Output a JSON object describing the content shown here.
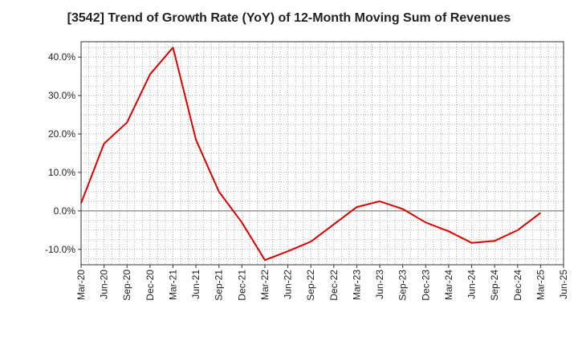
{
  "chart_data": {
    "type": "line",
    "title": "[3542]  Trend of Growth Rate (YoY) of 12-Month Moving Sum of Revenues",
    "xlabel": "",
    "ylabel": "",
    "ylim": [
      -14,
      44
    ],
    "y_ticks": [
      -10,
      0,
      10,
      20,
      30,
      40
    ],
    "y_tick_labels": [
      "-10.0%",
      "0.0%",
      "10.0%",
      "20.0%",
      "30.0%",
      "40.0%"
    ],
    "x_tick_labels": [
      "Mar-20",
      "Jun-20",
      "Sep-20",
      "Dec-20",
      "Mar-21",
      "Jun-21",
      "Sep-21",
      "Dec-21",
      "Mar-22",
      "Jun-22",
      "Sep-22",
      "Dec-22",
      "Mar-23",
      "Jun-23",
      "Sep-23",
      "Dec-23",
      "Mar-24",
      "Jun-24",
      "Sep-24",
      "Dec-24",
      "Mar-25",
      "Jun-25"
    ],
    "grid": true,
    "series": [
      {
        "color": "#dd0000",
        "x": [
          "Mar-20",
          "Jun-20",
          "Sep-20",
          "Dec-20",
          "Mar-21",
          "Jun-21",
          "Sep-21",
          "Dec-21",
          "Mar-22",
          "Jun-22",
          "Sep-22",
          "Dec-22",
          "Mar-23",
          "Jun-23",
          "Sep-23",
          "Dec-23",
          "Mar-24",
          "Jun-24",
          "Sep-24",
          "Dec-24",
          "Mar-25"
        ],
        "values": [
          2.0,
          17.5,
          23.0,
          35.5,
          42.5,
          18.5,
          5.0,
          -3.0,
          -12.8,
          -10.5,
          -8.0,
          -3.5,
          1.0,
          2.5,
          0.5,
          -3.0,
          -5.3,
          -8.3,
          -7.8,
          -5.0,
          -0.5
        ]
      }
    ]
  }
}
